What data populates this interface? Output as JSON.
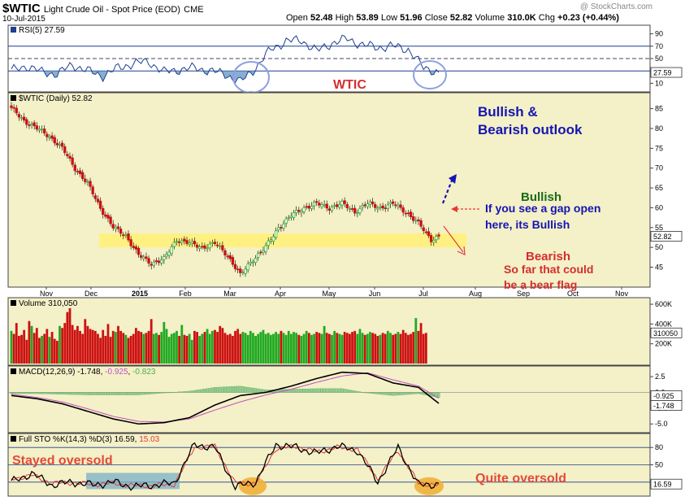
{
  "header": {
    "symbol": "$WTIC",
    "description": "Light Crude Oil - Spot Price (EOD)",
    "exchange": "CME",
    "date": "10-Jul-2015",
    "brand": "@ StockCharts.com",
    "open_label": "Open",
    "open": "52.48",
    "high_label": "High",
    "high": "53.89",
    "low_label": "Low",
    "low": "51.96",
    "close_label": "Close",
    "close": "52.82",
    "volume_label": "Volume",
    "volume": "310.0K",
    "chg_label": "Chg",
    "chg": "+0.23 (+0.44%)"
  },
  "annotations": {
    "wtic": "WTIC",
    "outlook_line1": "Bullish &",
    "outlook_line2": "Bearish outlook",
    "bullish": "Bullish",
    "gap_line1": "If you see a gap open",
    "gap_line2": "here, its Bullish",
    "bearish": "Bearish",
    "flag_line1": "So far that could",
    "flag_line2": "be a bear flag",
    "stayed_oversold": "Stayed oversold",
    "quite_oversold": "Quite oversold"
  },
  "colors": {
    "panel_bg": "#f4f0c8",
    "candle_up": "#22aa22",
    "candle_down": "#cc1111",
    "rsi_line": "#1f3f8f",
    "rsi_fill": "#6a9bc8",
    "zone": "#fff176",
    "annot_red": "#d32f2f",
    "annot_blue": "#1515b0",
    "annot_green": "#1a6b1a"
  },
  "chart_data": [
    {
      "type": "line",
      "title": "RSI(5)",
      "last_value": "27.59",
      "y_ticks": [
        "90",
        "70",
        "50",
        "30",
        "10"
      ],
      "ylim": [
        0,
        100
      ],
      "reference_lines": [
        70,
        50,
        30
      ],
      "x_index": [
        0,
        6,
        12,
        18,
        24,
        30,
        36,
        42,
        48,
        54,
        60,
        66,
        72,
        78,
        84,
        90,
        96,
        102,
        108,
        114,
        120,
        126,
        132,
        138,
        144,
        150,
        156,
        162,
        168
      ],
      "values": [
        30,
        38,
        28,
        25,
        40,
        30,
        22,
        35,
        42,
        45,
        28,
        32,
        35,
        30,
        25,
        12,
        35,
        65,
        78,
        80,
        62,
        75,
        82,
        72,
        68,
        70,
        65,
        35,
        28
      ]
    },
    {
      "type": "candlestick",
      "title": "$WTIC (Daily)",
      "last_value": "52.82",
      "y_ticks": [
        "85",
        "80",
        "75",
        "70",
        "65",
        "60",
        "55",
        "50",
        "45"
      ],
      "ylim": [
        41,
        88
      ],
      "x_ticks": [
        "Nov",
        "Dec",
        "2015",
        "Feb",
        "Mar",
        "Apr",
        "May",
        "Jun",
        "Jul",
        "Aug",
        "Sep",
        "Oct",
        "Nov"
      ],
      "highlight_zone": [
        50,
        53.5
      ],
      "x_index": [
        0,
        5,
        10,
        15,
        20,
        25,
        30,
        35,
        40,
        45,
        50,
        55,
        60,
        65,
        70,
        75,
        80,
        85,
        90,
        95,
        100,
        105,
        110,
        115,
        120,
        125,
        130,
        135,
        140,
        145,
        150,
        155,
        160,
        165,
        168
      ],
      "close": [
        85,
        82,
        80,
        78,
        75,
        70,
        66,
        60,
        55,
        53,
        48,
        46,
        47,
        52,
        51,
        50,
        51,
        48,
        43,
        47,
        50,
        55,
        58,
        60,
        61,
        60,
        61,
        59,
        61,
        60,
        61,
        59,
        56,
        52,
        52.82
      ]
    },
    {
      "type": "bar",
      "title": "Volume",
      "header_value": "310,050",
      "last_value": "310050",
      "y_ticks": [
        "600K",
        "400K",
        "200K"
      ],
      "ylim": [
        0,
        650000
      ],
      "values": [
        330000,
        300000,
        410000,
        280000,
        290000,
        340000,
        240000,
        430000,
        380000,
        310000,
        360000,
        260000,
        280000,
        300000,
        350000,
        270000,
        320000,
        250000,
        230000,
        380000,
        360000,
        410000,
        520000,
        560000,
        390000,
        340000,
        380000,
        330000,
        300000,
        450000,
        380000,
        350000,
        340000,
        330000,
        300000,
        260000,
        340000,
        280000,
        400000,
        270000,
        330000,
        320000,
        380000,
        330000,
        310000,
        290000,
        260000,
        280000,
        300000,
        360000,
        330000,
        320000,
        300000,
        310000,
        330000,
        450000,
        300000,
        310000,
        290000,
        320000,
        420000,
        350000,
        270000,
        300000,
        310000,
        330000,
        280000,
        390000,
        290000,
        280000,
        300000,
        240000,
        330000,
        320000,
        280000,
        300000,
        320000,
        350000,
        300000,
        330000,
        340000,
        320000,
        380000,
        360000,
        310000,
        290000,
        300000,
        280000,
        330000,
        350000,
        300000,
        320000,
        310000,
        290000,
        330000,
        310000,
        280000,
        300000,
        320000,
        340000,
        300000,
        310000,
        290000,
        300000,
        320000,
        300000,
        330000,
        310000,
        290000,
        330000,
        300000,
        320000,
        310000,
        290000,
        280000,
        300000,
        330000,
        310000,
        290000,
        300000,
        320000,
        310000,
        300000,
        380000,
        310000,
        300000,
        290000,
        330000,
        310000,
        300000,
        290000,
        320000,
        310000,
        300000,
        320000,
        330000,
        300000,
        350000,
        310000,
        290000,
        300000,
        320000,
        310000,
        300000,
        280000,
        290000,
        310000,
        300000,
        330000,
        310000,
        290000,
        300000,
        320000,
        300000,
        340000,
        310000,
        290000,
        300000,
        320000,
        460000,
        330000,
        410000,
        300000,
        310050
      ]
    },
    {
      "type": "line",
      "title": "MACD(12,26,9)",
      "macd_value": "-1.748",
      "signal_value": "-0.925",
      "hist_value": "-0.823",
      "y_ticks": [
        "2.5",
        "0.0",
        "-2.5",
        "-5.0"
      ],
      "right_labels": [
        "-0.925",
        "-1.748"
      ],
      "ylim": [
        -6,
        3.8
      ],
      "x_index": [
        0,
        10,
        20,
        30,
        40,
        50,
        60,
        70,
        80,
        90,
        100,
        110,
        120,
        130,
        140,
        150,
        160,
        168
      ],
      "series": [
        {
          "values": [
            -0.5,
            -1.0,
            -1.8,
            -3.0,
            -4.2,
            -5.0,
            -4.8,
            -4.0,
            -2.0,
            -0.5,
            0.0,
            1.0,
            2.2,
            3.2,
            3.0,
            1.5,
            0.8,
            -1.748
          ]
        },
        {
          "values": [
            -0.3,
            -0.8,
            -1.5,
            -2.6,
            -3.8,
            -4.6,
            -4.7,
            -4.2,
            -2.8,
            -1.5,
            -0.4,
            0.5,
            1.6,
            2.6,
            3.1,
            2.0,
            1.0,
            -0.925
          ]
        },
        {
          "values": [
            -0.2,
            -0.2,
            -0.3,
            -0.4,
            -0.4,
            -0.4,
            -0.1,
            0.2,
            0.8,
            1.0,
            0.4,
            0.5,
            0.6,
            0.6,
            -0.1,
            -0.5,
            -0.2,
            -0.823
          ]
        }
      ]
    },
    {
      "type": "line",
      "title": "Full STO %K(14,3) %D(3)",
      "k_value": "16.59",
      "d_value": "15.03",
      "y_ticks": [
        "80",
        "50",
        "20"
      ],
      "right_label": "16.59",
      "ylim": [
        0,
        100
      ],
      "reference_lines": [
        80,
        50,
        20
      ],
      "x_index": [
        0,
        8,
        16,
        24,
        32,
        40,
        48,
        56,
        64,
        72,
        80,
        88,
        96,
        104,
        112,
        120,
        128,
        136,
        144,
        152,
        160,
        168
      ],
      "series": [
        {
          "values": [
            20,
            35,
            15,
            20,
            15,
            20,
            12,
            15,
            18,
            85,
            80,
            12,
            20,
            85,
            80,
            70,
            82,
            75,
            20,
            80,
            15,
            16.59
          ]
        },
        {
          "values": [
            25,
            32,
            18,
            19,
            16,
            18,
            14,
            14,
            16,
            80,
            82,
            18,
            18,
            78,
            82,
            72,
            80,
            77,
            25,
            75,
            18,
            15.03
          ]
        }
      ]
    }
  ]
}
